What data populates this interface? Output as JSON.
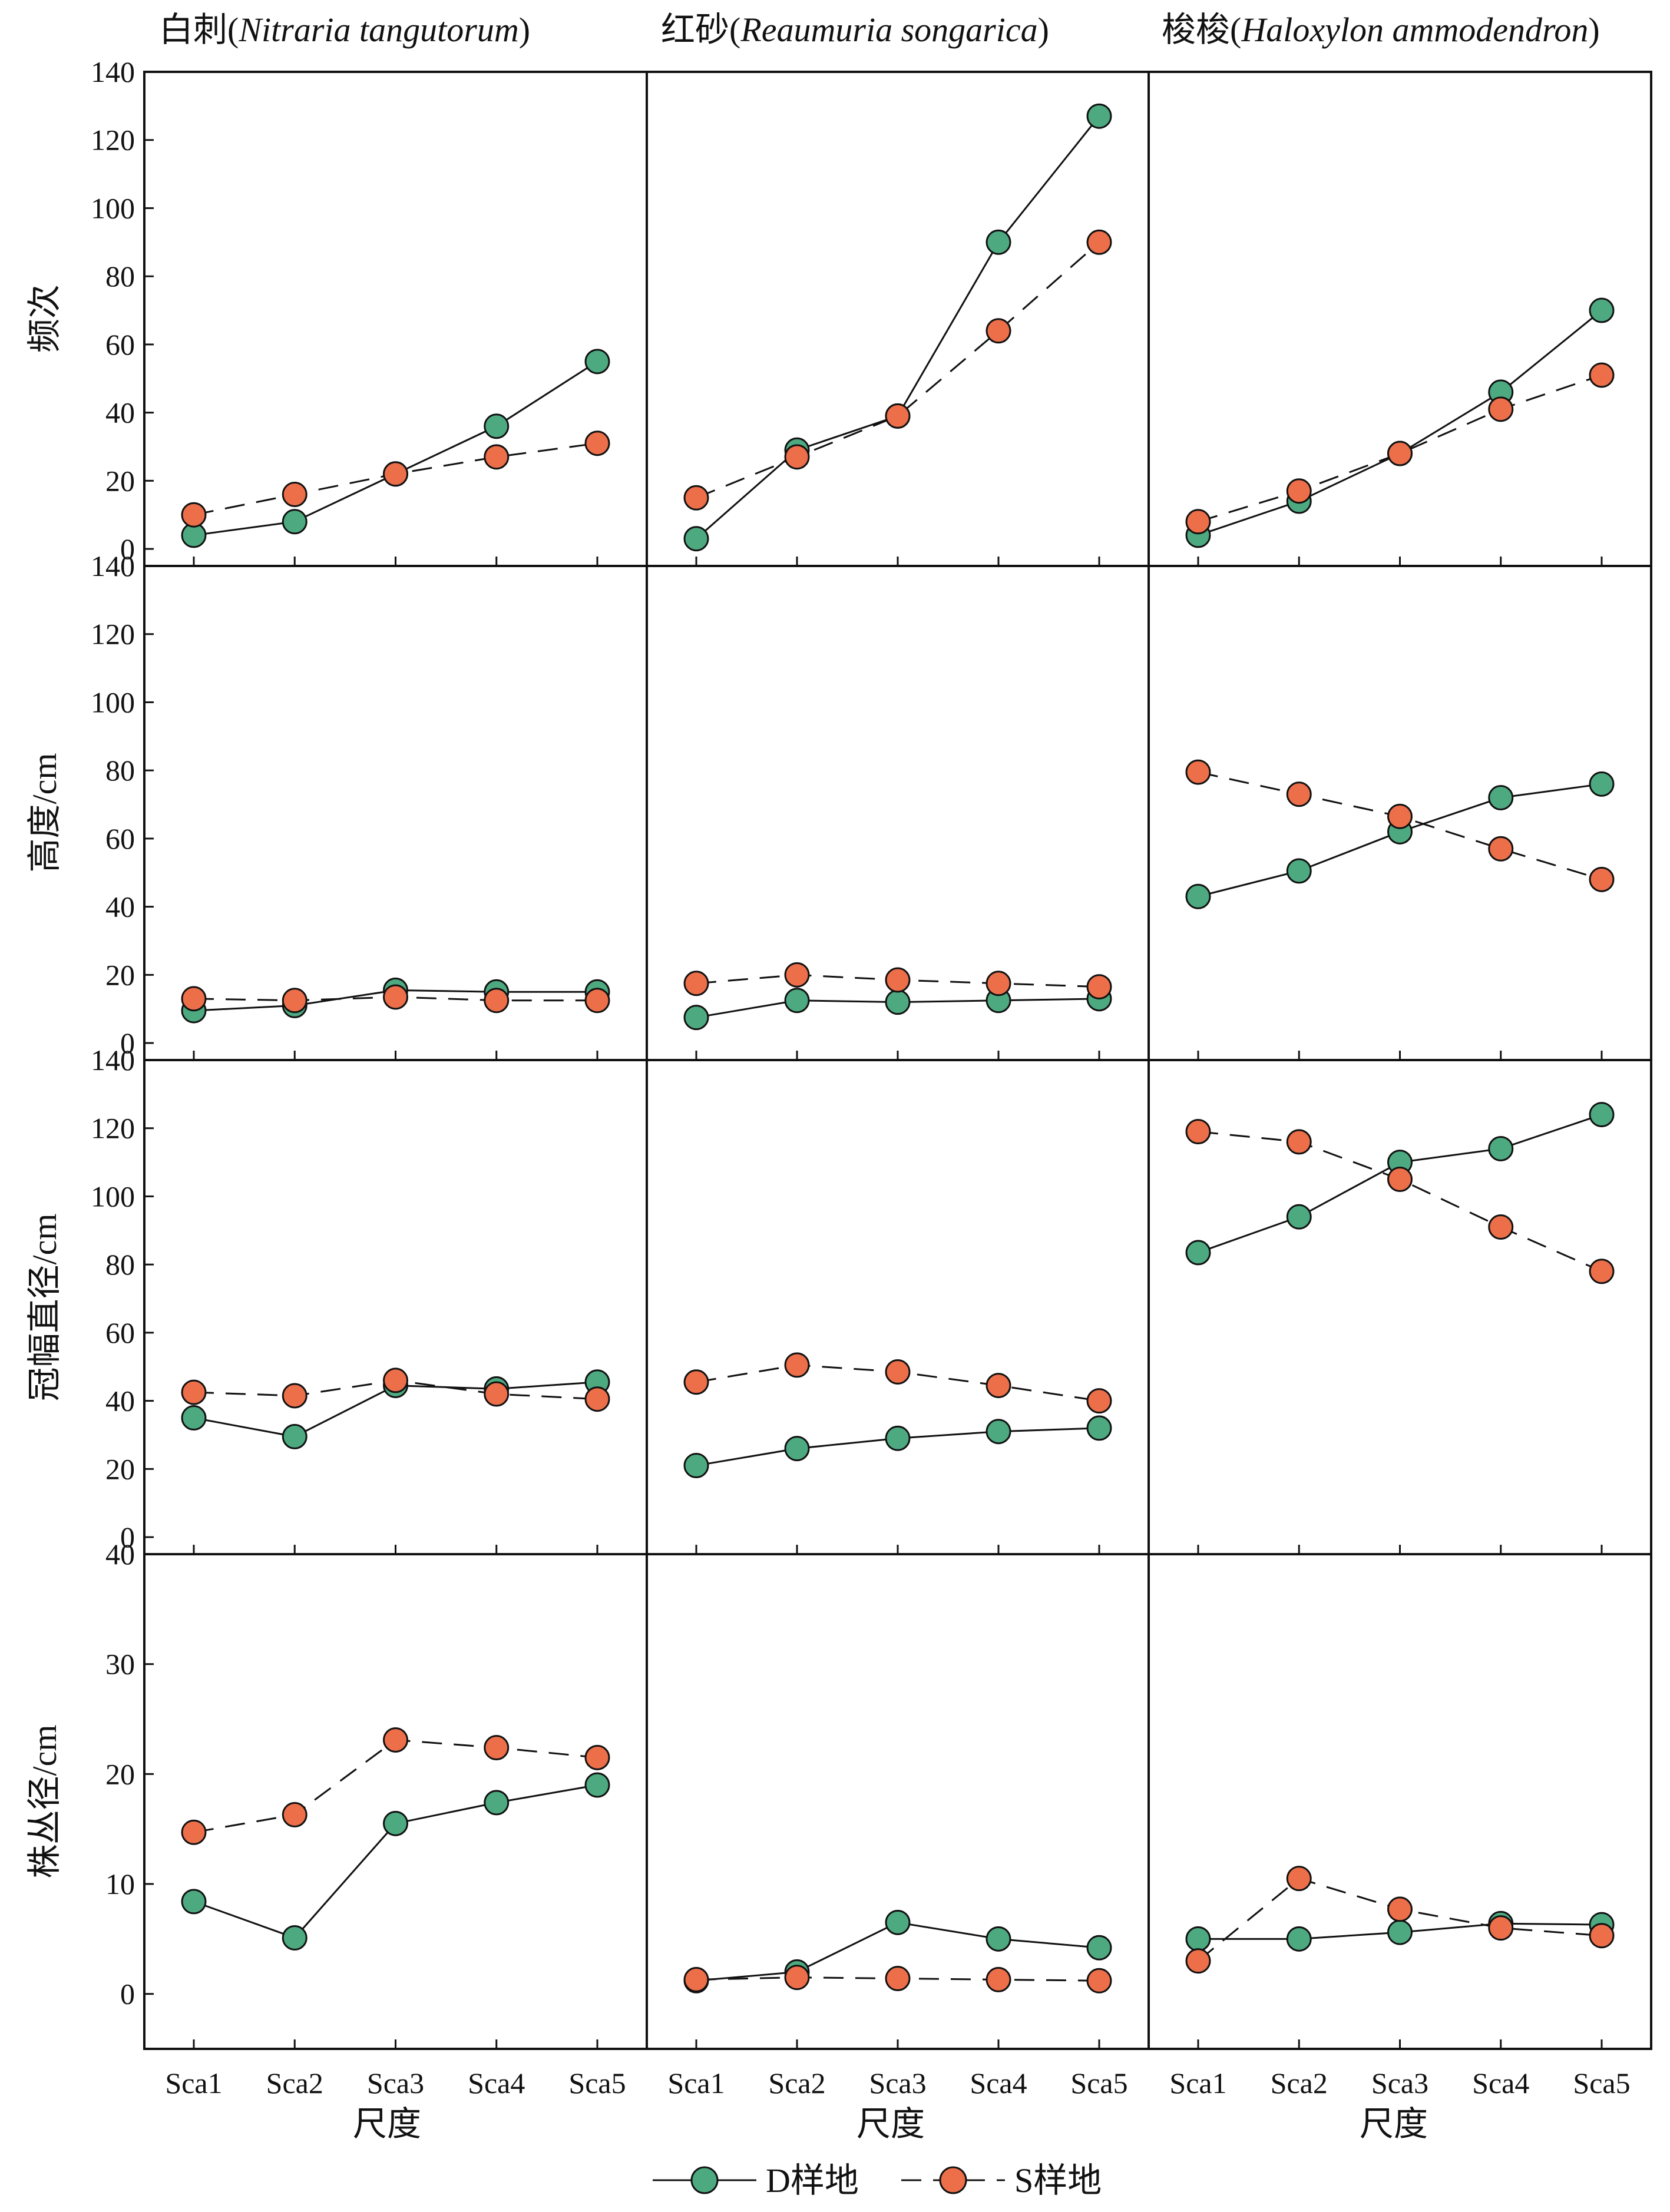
{
  "colors": {
    "d_series": "#4daa80",
    "s_series": "#ec6f4a",
    "axes": "#111111"
  },
  "columns": [
    {
      "cn": "白刺",
      "latin": "Nitraria tangutorum"
    },
    {
      "cn": "红砂",
      "latin": "Reaumuria songarica"
    },
    {
      "cn": "梭梭",
      "latin": "Haloxylon ammodendron"
    }
  ],
  "rows": [
    {
      "ylabel": "频次"
    },
    {
      "ylabel": "高度/cm"
    },
    {
      "ylabel": "冠幅直径/cm"
    },
    {
      "ylabel": "株丛径/cm"
    }
  ],
  "xlabel": "尺度",
  "legend": {
    "d_label": "D样地",
    "s_label": "S样地"
  },
  "chart_data": {
    "type": "line",
    "categories": [
      "Sca1",
      "Sca2",
      "Sca3",
      "Sca4",
      "Sca5"
    ],
    "xlabel": "尺度",
    "legend_position": "bottom",
    "grid": false,
    "panels": [
      {
        "row": 0,
        "col": 0,
        "ylabel": "频次",
        "ylim": [
          -5,
          140
        ],
        "yticks": [
          0,
          20,
          40,
          60,
          80,
          100,
          120,
          140
        ],
        "series": [
          {
            "name": "D样地",
            "values": [
              4,
              8,
              22,
              36,
              55
            ]
          },
          {
            "name": "S样地",
            "values": [
              10,
              16,
              22,
              27,
              31
            ]
          }
        ]
      },
      {
        "row": 0,
        "col": 1,
        "ylabel": "频次",
        "ylim": [
          -5,
          140
        ],
        "yticks": [
          0,
          20,
          40,
          60,
          80,
          100,
          120,
          140
        ],
        "series": [
          {
            "name": "D样地",
            "values": [
              3,
              29,
              39,
              90,
              127
            ]
          },
          {
            "name": "S样地",
            "values": [
              15,
              27,
              39,
              64,
              90
            ]
          }
        ]
      },
      {
        "row": 0,
        "col": 2,
        "ylabel": "频次",
        "ylim": [
          -5,
          140
        ],
        "yticks": [
          0,
          20,
          40,
          60,
          80,
          100,
          120,
          140
        ],
        "series": [
          {
            "name": "D样地",
            "values": [
              4,
              14,
              28,
              46,
              70
            ]
          },
          {
            "name": "S样地",
            "values": [
              8,
              17,
              28,
              41,
              51
            ]
          }
        ]
      },
      {
        "row": 1,
        "col": 0,
        "ylabel": "高度/cm",
        "ylim": [
          -5,
          140
        ],
        "yticks": [
          0,
          20,
          40,
          60,
          80,
          100,
          120,
          140
        ],
        "series": [
          {
            "name": "D样地",
            "values": [
              9.5,
              11,
              15.5,
              15,
              15
            ]
          },
          {
            "name": "S样地",
            "values": [
              13,
              12.5,
              13.5,
              12.5,
              12.5
            ]
          }
        ]
      },
      {
        "row": 1,
        "col": 1,
        "ylabel": "高度/cm",
        "ylim": [
          -5,
          140
        ],
        "yticks": [
          0,
          20,
          40,
          60,
          80,
          100,
          120,
          140
        ],
        "series": [
          {
            "name": "D样地",
            "values": [
              7.5,
              12.5,
              12,
              12.5,
              13
            ]
          },
          {
            "name": "S样地",
            "values": [
              17.5,
              20,
              18.5,
              17.5,
              16.5
            ]
          }
        ]
      },
      {
        "row": 1,
        "col": 2,
        "ylabel": "高度/cm",
        "ylim": [
          -5,
          140
        ],
        "yticks": [
          0,
          20,
          40,
          60,
          80,
          100,
          120,
          140
        ],
        "series": [
          {
            "name": "D样地",
            "values": [
              43,
              50.5,
              62,
              72,
              76
            ]
          },
          {
            "name": "S样地",
            "values": [
              79.5,
              73,
              66.5,
              57,
              48
            ]
          }
        ]
      },
      {
        "row": 2,
        "col": 0,
        "ylabel": "冠幅直径/cm",
        "ylim": [
          -5,
          140
        ],
        "yticks": [
          0,
          20,
          40,
          60,
          80,
          100,
          120,
          140
        ],
        "series": [
          {
            "name": "D样地",
            "values": [
              35,
              29.5,
              44.5,
              43.5,
              45.5
            ]
          },
          {
            "name": "S样地",
            "values": [
              42.5,
              41.5,
              46,
              42,
              40.5
            ]
          }
        ]
      },
      {
        "row": 2,
        "col": 1,
        "ylabel": "冠幅直径/cm",
        "ylim": [
          -5,
          140
        ],
        "yticks": [
          0,
          20,
          40,
          60,
          80,
          100,
          120,
          140
        ],
        "series": [
          {
            "name": "D样地",
            "values": [
              21,
              26,
              29,
              31,
              32
            ]
          },
          {
            "name": "S样地",
            "values": [
              45.5,
              50.5,
              48.5,
              44.5,
              40
            ]
          }
        ]
      },
      {
        "row": 2,
        "col": 2,
        "ylabel": "冠幅直径/cm",
        "ylim": [
          -5,
          140
        ],
        "yticks": [
          0,
          20,
          40,
          60,
          80,
          100,
          120,
          140
        ],
        "series": [
          {
            "name": "D样地",
            "values": [
              83.5,
              94,
              110,
              114,
              124
            ]
          },
          {
            "name": "S样地",
            "values": [
              119,
              116,
              105,
              91,
              78
            ]
          }
        ]
      },
      {
        "row": 3,
        "col": 0,
        "ylabel": "株丛径/cm",
        "ylim": [
          -5,
          40
        ],
        "yticks": [
          0,
          10,
          20,
          30,
          40
        ],
        "series": [
          {
            "name": "D样地",
            "values": [
              8.4,
              5.1,
              15.5,
              17.4,
              19
            ]
          },
          {
            "name": "S样地",
            "values": [
              14.7,
              16.3,
              23.1,
              22.4,
              21.5
            ]
          }
        ]
      },
      {
        "row": 3,
        "col": 1,
        "ylabel": "株丛径/cm",
        "ylim": [
          -5,
          40
        ],
        "yticks": [
          0,
          10,
          20,
          30,
          40
        ],
        "series": [
          {
            "name": "D样地",
            "values": [
              1.2,
              2,
              6.5,
              5,
              4.2
            ]
          },
          {
            "name": "S样地",
            "values": [
              1.3,
              1.5,
              1.4,
              1.3,
              1.2
            ]
          }
        ]
      },
      {
        "row": 3,
        "col": 2,
        "ylabel": "株丛径/cm",
        "ylim": [
          -5,
          40
        ],
        "yticks": [
          0,
          10,
          20,
          30,
          40
        ],
        "series": [
          {
            "name": "D样地",
            "values": [
              5,
              5,
              5.6,
              6.4,
              6.3
            ]
          },
          {
            "name": "S样地",
            "values": [
              3,
              10.5,
              7.7,
              6,
              5.3
            ]
          }
        ]
      }
    ]
  }
}
